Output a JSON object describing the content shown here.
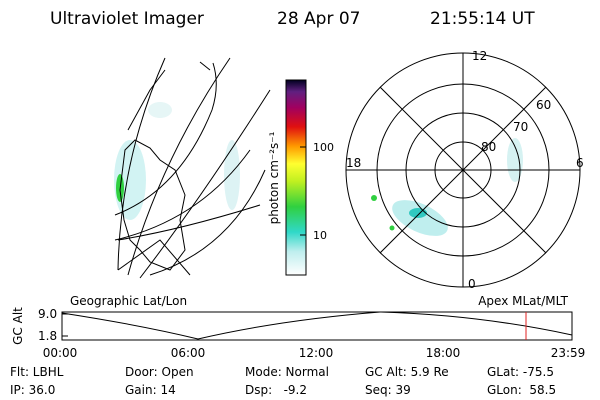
{
  "header": {
    "instrument": "Ultraviolet Imager",
    "date": "28 Apr 07",
    "time": "21:55:14 UT"
  },
  "colorbar": {
    "label": "photon cm⁻²s⁻¹",
    "ticks": [
      "100",
      "10"
    ]
  },
  "polar": {
    "labels": [
      "12",
      "60",
      "70",
      "80",
      "18",
      "6",
      "0"
    ]
  },
  "panel_labels": {
    "left": "Geographic Lat/Lon",
    "right": "Apex MLat/MLT"
  },
  "altitude": {
    "axis_label": "GC Alt",
    "yticks": [
      "9.0",
      "1.8"
    ],
    "xticks": [
      "00:00",
      "06:00",
      "12:00",
      "18:00",
      "23:59"
    ]
  },
  "info": [
    [
      "Flt: LBHL",
      "Door: Open",
      "Mode: Normal",
      "GC Alt: 5.9 Re",
      "GLat: -75.5"
    ],
    [
      "IP: 36.0",
      "Gain: 14",
      "Dsp:   -9.2",
      "Seq: 39",
      "GLon:  58.5"
    ]
  ]
}
